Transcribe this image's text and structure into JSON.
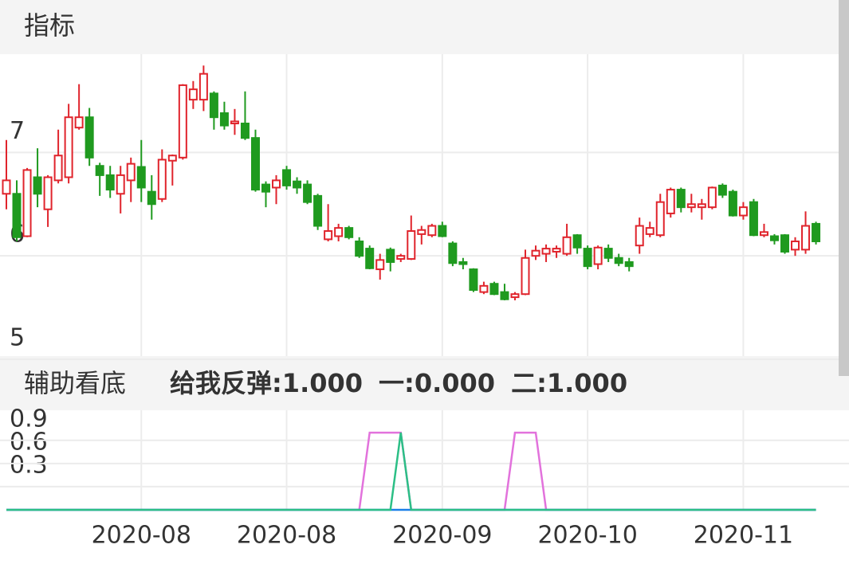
{
  "header": {
    "title": "指标"
  },
  "chart_data": [
    {
      "type": "candlestick",
      "up_color": "#e0242c",
      "down_color": "#1f9a1f",
      "ylim": [
        5,
        7.95
      ],
      "yticks": [
        5,
        6,
        7
      ],
      "grid": true,
      "open": [
        6.6,
        6.6,
        6.19,
        6.76,
        6.45,
        6.73,
        6.76,
        7.24,
        7.34,
        6.87,
        6.78,
        6.6,
        6.73,
        6.86,
        6.62,
        6.55,
        6.92,
        6.95,
        7.51,
        7.51,
        7.57,
        7.38,
        7.28,
        7.28,
        7.14,
        6.69,
        6.66,
        6.83,
        6.72,
        6.69,
        6.58,
        6.16,
        6.19,
        6.27,
        6.14,
        6.07,
        5.87,
        6.06,
        5.97,
        5.97,
        6.21,
        6.2,
        6.29,
        6.12,
        5.94,
        5.87,
        5.65,
        5.73,
        5.65,
        5.6,
        5.63,
        6.0,
        6.02,
        6.04,
        6.02,
        6.2,
        6.07,
        5.92,
        6.07,
        5.98,
        5.94,
        6.1,
        6.21,
        6.2,
        6.41,
        6.64,
        6.47,
        6.47,
        6.47,
        6.68,
        6.62,
        6.39,
        6.52,
        6.2,
        6.19,
        6.2,
        6.06,
        6.06,
        6.31
      ],
      "high": [
        7.12,
        6.73,
        6.85,
        7.04,
        6.78,
        7.22,
        7.47,
        7.66,
        7.43,
        6.9,
        6.87,
        6.87,
        6.95,
        7.12,
        6.78,
        7.03,
        6.98,
        7.66,
        7.69,
        7.84,
        7.59,
        7.49,
        7.42,
        7.59,
        7.22,
        6.72,
        6.78,
        6.87,
        6.76,
        6.73,
        6.6,
        6.5,
        6.31,
        6.29,
        6.18,
        6.1,
        6.02,
        6.08,
        6.02,
        6.39,
        6.29,
        6.31,
        6.33,
        6.14,
        5.98,
        5.88,
        5.75,
        5.75,
        5.73,
        5.65,
        6.06,
        6.1,
        6.11,
        6.1,
        6.31,
        6.21,
        6.1,
        6.1,
        6.11,
        6.02,
        5.98,
        6.37,
        6.33,
        6.6,
        6.66,
        6.66,
        6.6,
        6.55,
        6.67,
        6.7,
        6.64,
        6.52,
        6.55,
        6.31,
        6.21,
        6.21,
        6.18,
        6.43,
        6.33
      ],
      "low": [
        6.45,
        6.14,
        6.18,
        6.47,
        6.28,
        6.7,
        6.7,
        7.22,
        6.87,
        6.58,
        6.56,
        6.41,
        6.52,
        6.52,
        6.35,
        6.52,
        6.68,
        6.93,
        7.42,
        7.4,
        7.22,
        7.22,
        7.17,
        7.12,
        6.62,
        6.47,
        6.5,
        6.64,
        6.6,
        6.5,
        6.25,
        6.14,
        6.14,
        6.16,
        5.98,
        5.87,
        5.77,
        5.85,
        5.94,
        5.96,
        6.11,
        6.18,
        6.18,
        5.9,
        5.87,
        5.65,
        5.63,
        5.62,
        5.57,
        5.57,
        5.62,
        5.96,
        5.94,
        5.98,
        6.0,
        6.02,
        5.87,
        5.87,
        5.94,
        5.9,
        5.85,
        6.02,
        6.18,
        6.18,
        6.37,
        6.42,
        6.42,
        6.35,
        6.45,
        6.56,
        6.38,
        6.35,
        6.19,
        6.18,
        6.11,
        6.02,
        6.0,
        6.02,
        6.11
      ],
      "close": [
        6.73,
        6.18,
        6.83,
        6.6,
        6.76,
        6.97,
        7.34,
        7.34,
        6.95,
        6.78,
        6.64,
        6.78,
        6.89,
        6.66,
        6.5,
        6.93,
        6.97,
        7.65,
        7.61,
        7.76,
        7.34,
        7.26,
        7.3,
        7.14,
        6.64,
        6.62,
        6.73,
        6.68,
        6.66,
        6.52,
        6.29,
        6.24,
        6.27,
        6.18,
        6.0,
        5.88,
        5.96,
        5.94,
        6.0,
        6.24,
        6.25,
        6.29,
        6.19,
        5.93,
        5.92,
        5.67,
        5.71,
        5.63,
        5.58,
        5.63,
        5.98,
        6.05,
        6.07,
        6.07,
        6.18,
        6.08,
        5.9,
        6.08,
        5.98,
        5.93,
        5.9,
        6.29,
        6.27,
        6.52,
        6.64,
        6.47,
        6.5,
        6.5,
        6.66,
        6.59,
        6.39,
        6.47,
        6.2,
        6.23,
        6.15,
        6.04,
        6.14,
        6.29,
        6.14
      ]
    },
    {
      "type": "line",
      "title": "辅助看底",
      "categories": [
        null,
        null,
        null,
        null,
        null,
        null,
        null,
        null,
        null,
        null,
        null,
        null,
        null,
        "2020-08",
        null,
        null,
        null,
        null,
        null,
        null,
        null,
        null,
        null,
        null,
        null,
        null,
        null,
        "2020-08",
        null,
        null,
        null,
        null,
        null,
        null,
        null,
        null,
        null,
        null,
        null,
        null,
        null,
        null,
        "2020-09",
        null,
        null,
        null,
        null,
        null,
        null,
        null,
        null,
        null,
        null,
        null,
        null,
        null,
        "2020-10",
        null,
        null,
        null,
        null,
        null,
        null,
        null,
        null,
        null,
        null,
        null,
        null,
        null,
        null,
        "2020-11",
        null,
        null,
        null,
        null,
        null,
        null,
        null
      ],
      "ylim": [
        0,
        1.29
      ],
      "yticks": [
        0.3,
        0.6,
        0.9
      ],
      "grid": true,
      "series": [
        {
          "name": "给我反弹:1.000",
          "color": "#e272dc",
          "values": [
            0,
            0,
            0,
            0,
            0,
            0,
            0,
            0,
            0,
            0,
            0,
            0,
            0,
            0,
            0,
            0,
            0,
            0,
            0,
            0,
            0,
            0,
            0,
            0,
            0,
            0,
            0,
            0,
            0,
            0,
            0,
            0,
            0,
            0,
            0,
            1,
            1,
            1,
            1,
            0,
            0,
            0,
            0,
            0,
            0,
            0,
            0,
            0,
            0,
            1,
            1,
            1,
            0,
            0,
            0,
            0,
            0,
            0,
            0,
            0,
            0,
            0,
            0,
            0,
            0,
            0,
            0,
            0,
            0,
            0,
            0,
            0,
            0,
            0,
            0,
            0,
            0,
            0,
            0
          ]
        },
        {
          "name": "一:0.000",
          "color": "#1a7fe8",
          "values": [
            0,
            0,
            0,
            0,
            0,
            0,
            0,
            0,
            0,
            0,
            0,
            0,
            0,
            0,
            0,
            0,
            0,
            0,
            0,
            0,
            0,
            0,
            0,
            0,
            0,
            0,
            0,
            0,
            0,
            0,
            0,
            0,
            0,
            0,
            0,
            0,
            0,
            0,
            0,
            0,
            0,
            0,
            0,
            0,
            0,
            0,
            0,
            0,
            0,
            0,
            0,
            0,
            0,
            0,
            0,
            0,
            0,
            0,
            0,
            0,
            0,
            0,
            0,
            0,
            0,
            0,
            0,
            0,
            0,
            0,
            0,
            0,
            0,
            0,
            0,
            0,
            0,
            0,
            0
          ]
        },
        {
          "name": "二:1.000",
          "color": "#2cbf86",
          "values": [
            0,
            0,
            0,
            0,
            0,
            0,
            0,
            0,
            0,
            0,
            0,
            0,
            0,
            0,
            0,
            0,
            0,
            0,
            0,
            0,
            0,
            0,
            0,
            0,
            0,
            0,
            0,
            0,
            0,
            0,
            0,
            0,
            0,
            0,
            0,
            0,
            0,
            0,
            1,
            0,
            0,
            0,
            0,
            0,
            0,
            0,
            0,
            0,
            0,
            0,
            0,
            0,
            0,
            0,
            0,
            0,
            0,
            0,
            0,
            0,
            0,
            0,
            0,
            0,
            0,
            0,
            0,
            0,
            0,
            0,
            0,
            0,
            0,
            0,
            0,
            0,
            0,
            0,
            0
          ]
        }
      ]
    }
  ]
}
